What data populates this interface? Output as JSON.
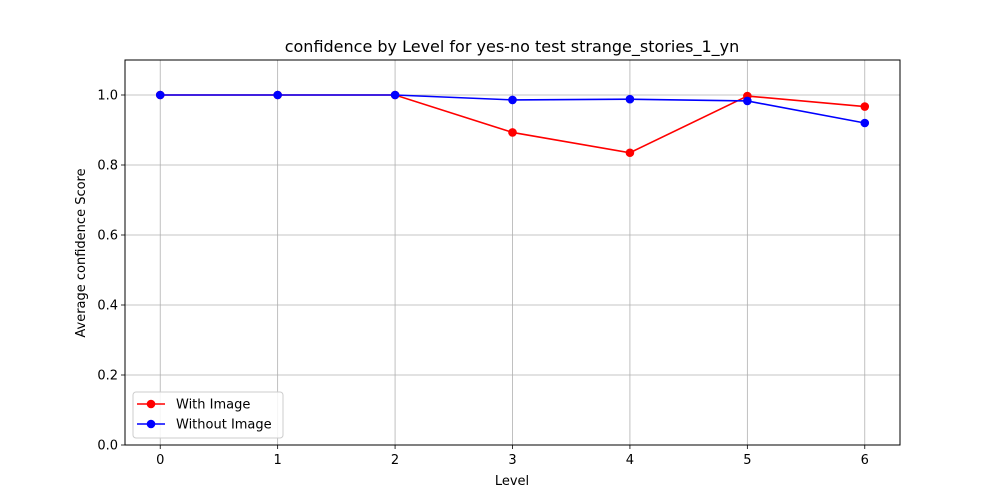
{
  "chart_data": {
    "type": "line",
    "title": "confidence by Level for yes-no test strange_stories_1_yn",
    "xlabel": "Level",
    "ylabel": "Average confidence Score",
    "x": [
      0,
      1,
      2,
      3,
      4,
      5,
      6
    ],
    "xlim": [
      -0.3,
      6.3
    ],
    "ylim": [
      0.0,
      1.1
    ],
    "xticks": [
      "0",
      "1",
      "2",
      "3",
      "4",
      "5",
      "6"
    ],
    "yticks": [
      "0.0",
      "0.2",
      "0.4",
      "0.6",
      "0.8",
      "1.0"
    ],
    "grid": true,
    "legend_position": "lower-left",
    "series": [
      {
        "name": "With Image",
        "color": "#ff0000",
        "values": [
          1.0,
          1.0,
          1.0,
          0.893,
          0.835,
          0.997,
          0.967
        ]
      },
      {
        "name": "Without Image",
        "color": "#0000ff",
        "values": [
          1.0,
          1.0,
          1.0,
          0.986,
          0.988,
          0.983,
          0.92
        ]
      }
    ]
  }
}
